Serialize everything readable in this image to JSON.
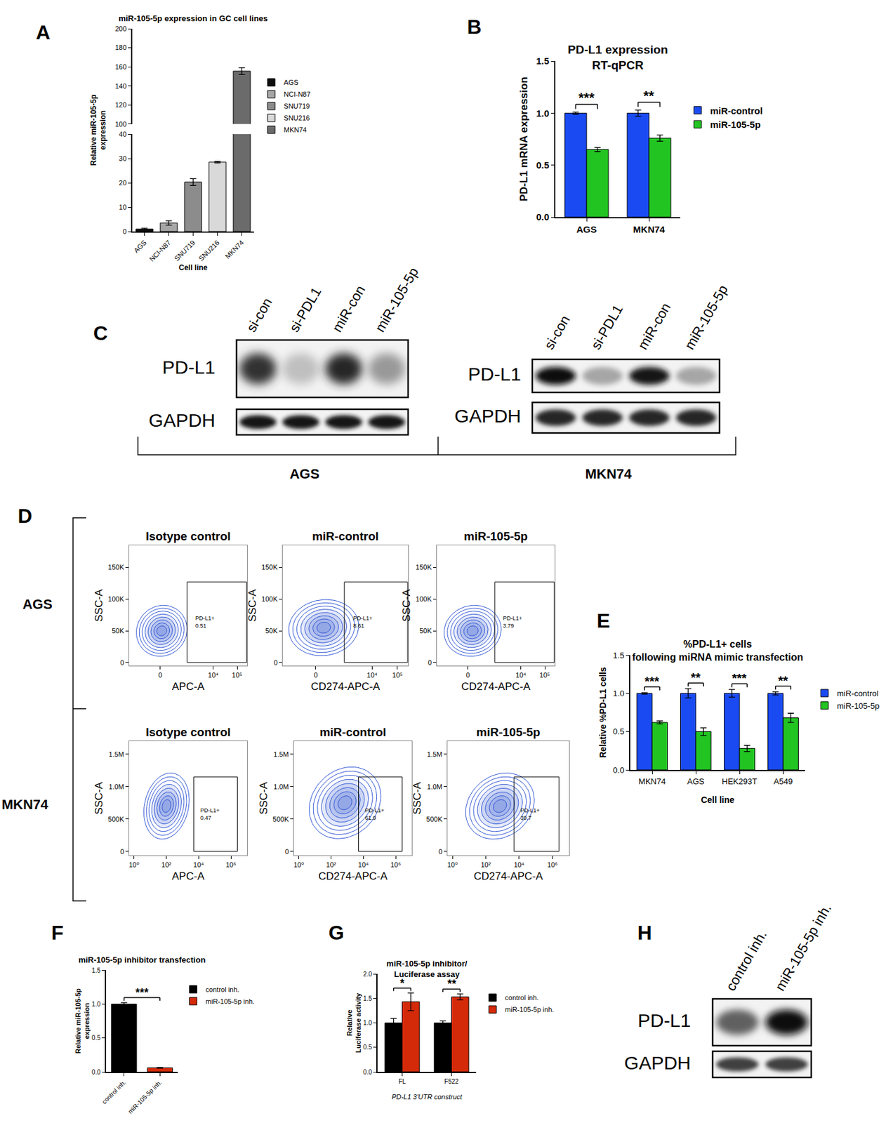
{
  "chart_data": [
    {
      "panel": "A",
      "type": "bar",
      "title": "miR-105-5p expression in GC cell lines",
      "x_label": "Cell line",
      "y_label": "Relative miR-105-5p\nexpression",
      "categories": [
        "AGS",
        "NCI-N87",
        "SNU719",
        "SNU216",
        "MKN74"
      ],
      "series": [
        {
          "name": "AGS",
          "color": "#0d0d0d",
          "values": [
            1.0,
            null,
            null,
            null,
            null
          ],
          "errors": [
            0.3,
            null,
            null,
            null,
            null
          ]
        },
        {
          "name": "NCI-N87",
          "color": "#a6a6a6",
          "values": [
            null,
            3.5,
            null,
            null,
            null
          ],
          "errors": [
            null,
            0.9,
            null,
            null,
            null
          ]
        },
        {
          "name": "SNU719",
          "color": "#8c8c8c",
          "values": [
            null,
            null,
            20.3,
            null,
            null
          ],
          "errors": [
            null,
            null,
            1.4,
            null,
            null
          ]
        },
        {
          "name": "SNU216",
          "color": "#d9d9d9",
          "values": [
            null,
            null,
            null,
            28.5,
            null
          ],
          "errors": [
            null,
            null,
            null,
            0.3,
            null
          ]
        },
        {
          "name": "MKN74",
          "color": "#6b6b6b",
          "values": [
            null,
            null,
            null,
            null,
            155.5
          ],
          "errors": [
            null,
            null,
            null,
            null,
            3.5
          ]
        }
      ],
      "ylim": [
        [
          0,
          40
        ],
        [
          100,
          200
        ]
      ],
      "yticks": [
        [
          0,
          10,
          20,
          30,
          40
        ],
        [
          100,
          120,
          140,
          160,
          180,
          200
        ]
      ],
      "grid": false,
      "legend": "right"
    },
    {
      "panel": "B",
      "type": "bar",
      "title": "PD-L1 expression\nRT-qPCR",
      "y_label": "PD-L1 mRNA expression",
      "categories": [
        "AGS",
        "MKN74"
      ],
      "series": [
        {
          "name": "miR-control",
          "color": "#1a4bf2",
          "values": [
            1.0,
            1.0
          ],
          "errors": [
            0.01,
            0.03
          ]
        },
        {
          "name": "miR-105-5p",
          "color": "#22c422",
          "values": [
            0.65,
            0.76
          ],
          "errors": [
            0.02,
            0.03
          ]
        }
      ],
      "ylim": [
        0,
        1.5
      ],
      "yticks": [
        {
          "value": 0,
          "label": "0.0"
        },
        0.5,
        {
          "value": 1,
          "label": "1.0"
        },
        1.5
      ],
      "grid": false,
      "legend": "right",
      "significance": [
        {
          "category": "AGS",
          "label": "***"
        },
        {
          "category": "MKN74",
          "label": "**"
        }
      ]
    },
    {
      "panel": "C",
      "type": "blot",
      "groups": [
        {
          "name": "AGS",
          "lanes": [
            "si-con",
            "si-PDL1",
            "miR-con",
            "miR-105-5p"
          ],
          "rows": [
            {
              "name": "PD-L1",
              "intensity": [
                0.8,
                0.25,
                0.85,
                0.4
              ]
            },
            {
              "name": "GAPDH",
              "intensity": [
                0.9,
                0.9,
                0.9,
                0.9
              ]
            }
          ]
        },
        {
          "name": "MKN74",
          "lanes": [
            "si-con",
            "si-PDL1",
            "miR-con",
            "miR-105-5p"
          ],
          "rows": [
            {
              "name": "PD-L1",
              "intensity": [
                0.95,
                0.35,
                0.9,
                0.35
              ]
            },
            {
              "name": "GAPDH",
              "intensity": [
                0.85,
                0.85,
                0.85,
                0.85
              ]
            }
          ]
        }
      ]
    },
    {
      "panel": "D",
      "type": "flow",
      "rows": [
        {
          "name": "AGS",
          "xlim": [
            -1200,
            262144
          ],
          "ylim": [
            -5000,
            185000
          ],
          "xticks": [
            0,
            {
              "value": 10000,
              "label": "10⁴"
            },
            {
              "value": 100000,
              "label": "10⁵"
            }
          ],
          "yticks": [
            0,
            {
              "value": 50000,
              "label": "50K"
            },
            {
              "value": 100000,
              "label": "100K"
            },
            {
              "value": 150000,
              "label": "150K"
            }
          ],
          "plots": [
            {
              "title": "Isotype control",
              "x_label": "APC-A",
              "y_label": "SSC-A",
              "gate_label": "PD-L1+",
              "gate_value": 0.51,
              "gate": {
                "x": [
                  800,
                  250000
                ],
                "y": [
                  0,
                  127000
                ]
              },
              "population": {
                "x": [
                  -600,
                  800
                ],
                "y": [
                  0,
                  100000
                ]
              }
            },
            {
              "title": "miR-control",
              "x_label": "CD274-APC-A",
              "y_label": "SSC-A",
              "gate_label": "PD-L1+",
              "gate_value": 8.61,
              "gate": {
                "x": [
                  800,
                  250000
                ],
                "y": [
                  0,
                  127000
                ]
              },
              "population": {
                "x": [
                  -700,
                  3000
                ],
                "y": [
                  0,
                  110000
                ]
              }
            },
            {
              "title": "miR-105-5p",
              "x_label": "CD274-APC-A",
              "y_label": "SSC-A",
              "gate_label": "PD-L1+",
              "gate_value": 3.79,
              "gate": {
                "x": [
                  800,
                  250000
                ],
                "y": [
                  0,
                  127000
                ]
              },
              "population": {
                "x": [
                  -600,
                  1500
                ],
                "y": [
                  0,
                  100000
                ]
              }
            }
          ]
        },
        {
          "name": "MKN74",
          "log": "x",
          "xlim": [
            0.5,
            10000000
          ],
          "ylim": [
            -60000,
            1700000
          ],
          "xticks": [
            {
              "value": 1,
              "label": "10⁰"
            },
            {
              "value": 100,
              "label": "10²"
            },
            {
              "value": 10000,
              "label": "10⁴"
            },
            {
              "value": 1000000,
              "label": "10⁶"
            }
          ],
          "yticks": [
            0,
            {
              "value": 500000,
              "label": "500K"
            },
            {
              "value": 1000000,
              "label": "1.0M"
            },
            {
              "value": 1500000,
              "label": "1.5M"
            }
          ],
          "plots": [
            {
              "title": "Isotype control",
              "x_label": "APC-A",
              "y_label": "SSC-A",
              "gate_label": "PD-L1+",
              "gate_value": 0.47,
              "gate": {
                "x": [
                  5000,
                  2500000
                ],
                "y": [
                  0,
                  1150000
                ]
              },
              "population": {
                "x": [
                  3.5,
                  3000
                ],
                "y": [
                  100000,
                  1300000
                ]
              }
            },
            {
              "title": "miR-control",
              "x_label": "CD274-APC-A",
              "y_label": "SSC-A",
              "gate_label": "PD-L1+",
              "gate_value": 61.9,
              "gate": {
                "x": [
                  5000,
                  2500000
                ],
                "y": [
                  0,
                  1150000
                ]
              },
              "population": {
                "x": [
                  3.5,
                  150000
                ],
                "y": [
                  100000,
                  1400000
                ]
              }
            },
            {
              "title": "miR-105-5p",
              "x_label": "CD274-APC-A",
              "y_label": "SSC-A",
              "gate_label": "PD-L1+",
              "gate_value": 39.7,
              "gate": {
                "x": [
                  5000,
                  2500000
                ],
                "y": [
                  0,
                  1150000
                ]
              },
              "population": {
                "x": [
                  5,
                  100000
                ],
                "y": [
                  100000,
                  1300000
                ]
              }
            }
          ]
        }
      ]
    },
    {
      "panel": "E",
      "type": "bar",
      "title": "%PD-L1+ cells\nfollowing miRNA mimic transfection",
      "x_label": "Cell line",
      "y_label": "Relative %PD-L1 cells",
      "categories": [
        "MKN74",
        "AGS",
        "HEK293T",
        "A549"
      ],
      "series": [
        {
          "name": "miR-control",
          "color": "#1a4bf2",
          "values": [
            1.0,
            1.0,
            1.0,
            1.0
          ],
          "errors": [
            0.01,
            0.06,
            0.05,
            0.02
          ]
        },
        {
          "name": "miR-105-5p",
          "color": "#22c422",
          "values": [
            0.62,
            0.5,
            0.28,
            0.68
          ],
          "errors": [
            0.02,
            0.05,
            0.04,
            0.06
          ]
        }
      ],
      "ylim": [
        0,
        1.5
      ],
      "yticks": [
        {
          "value": 0,
          "label": "0.0"
        },
        0.5,
        {
          "value": 1,
          "label": "1.0"
        },
        1.5
      ],
      "grid": false,
      "legend": "right",
      "significance": [
        {
          "category": "MKN74",
          "label": "***"
        },
        {
          "category": "AGS",
          "label": "**"
        },
        {
          "category": "HEK293T",
          "label": "***"
        },
        {
          "category": "A549",
          "label": "**"
        }
      ]
    },
    {
      "panel": "F",
      "type": "bar",
      "title": "miR-105-5p inhibitor transfection",
      "y_label": "Relative miR-105-5p\nexpression",
      "categories": [
        "control inh.",
        "miR-105-5p inh."
      ],
      "series": [
        {
          "name": "control inh.",
          "color": "#000000",
          "values": [
            1.0,
            null
          ],
          "errors": [
            0.02,
            null
          ]
        },
        {
          "name": "miR-105-5p inh.",
          "color": "#d42a0a",
          "values": [
            null,
            0.06
          ],
          "errors": [
            null,
            0.005
          ]
        }
      ],
      "ylim": [
        0,
        1.5
      ],
      "yticks": [
        {
          "value": 0,
          "label": "0.0"
        },
        0.5,
        {
          "value": 1,
          "label": "1.0"
        },
        1.5
      ],
      "grid": false,
      "legend": "right",
      "significance": [
        {
          "between": [
            "control inh.",
            "miR-105-5p inh."
          ],
          "label": "***"
        }
      ]
    },
    {
      "panel": "G",
      "type": "bar",
      "title": "miR-105-5p inhibitor/\nLuciferase assay",
      "x_label": "PD-L1 3'UTR construct",
      "y_label": "Relative\nLuciferase activity",
      "categories": [
        "FL",
        "F522"
      ],
      "series": [
        {
          "name": "control inh.",
          "color": "#000000",
          "values": [
            1.0,
            1.0
          ],
          "errors": [
            0.09,
            0.04
          ]
        },
        {
          "name": "miR-105-5p inh.",
          "color": "#d42a0a",
          "values": [
            1.43,
            1.53
          ],
          "errors": [
            0.18,
            0.06
          ]
        }
      ],
      "ylim": [
        0,
        2
      ],
      "yticks": [
        {
          "value": 0,
          "label": "0.0"
        },
        0.5,
        {
          "value": 1,
          "label": "1.0"
        },
        1.5,
        {
          "value": 2,
          "label": "2.0"
        }
      ],
      "grid": false,
      "legend": "right",
      "significance": [
        {
          "category": "FL",
          "label": "*"
        },
        {
          "category": "F522",
          "label": "**"
        }
      ]
    },
    {
      "panel": "H",
      "type": "blot",
      "groups": [
        {
          "lanes": [
            "control inh.",
            "miR-105-5p inh."
          ],
          "rows": [
            {
              "name": "PD-L1",
              "intensity": [
                0.62,
                0.95
              ]
            },
            {
              "name": "GAPDH",
              "intensity": [
                0.75,
                0.75
              ]
            }
          ]
        }
      ]
    }
  ]
}
